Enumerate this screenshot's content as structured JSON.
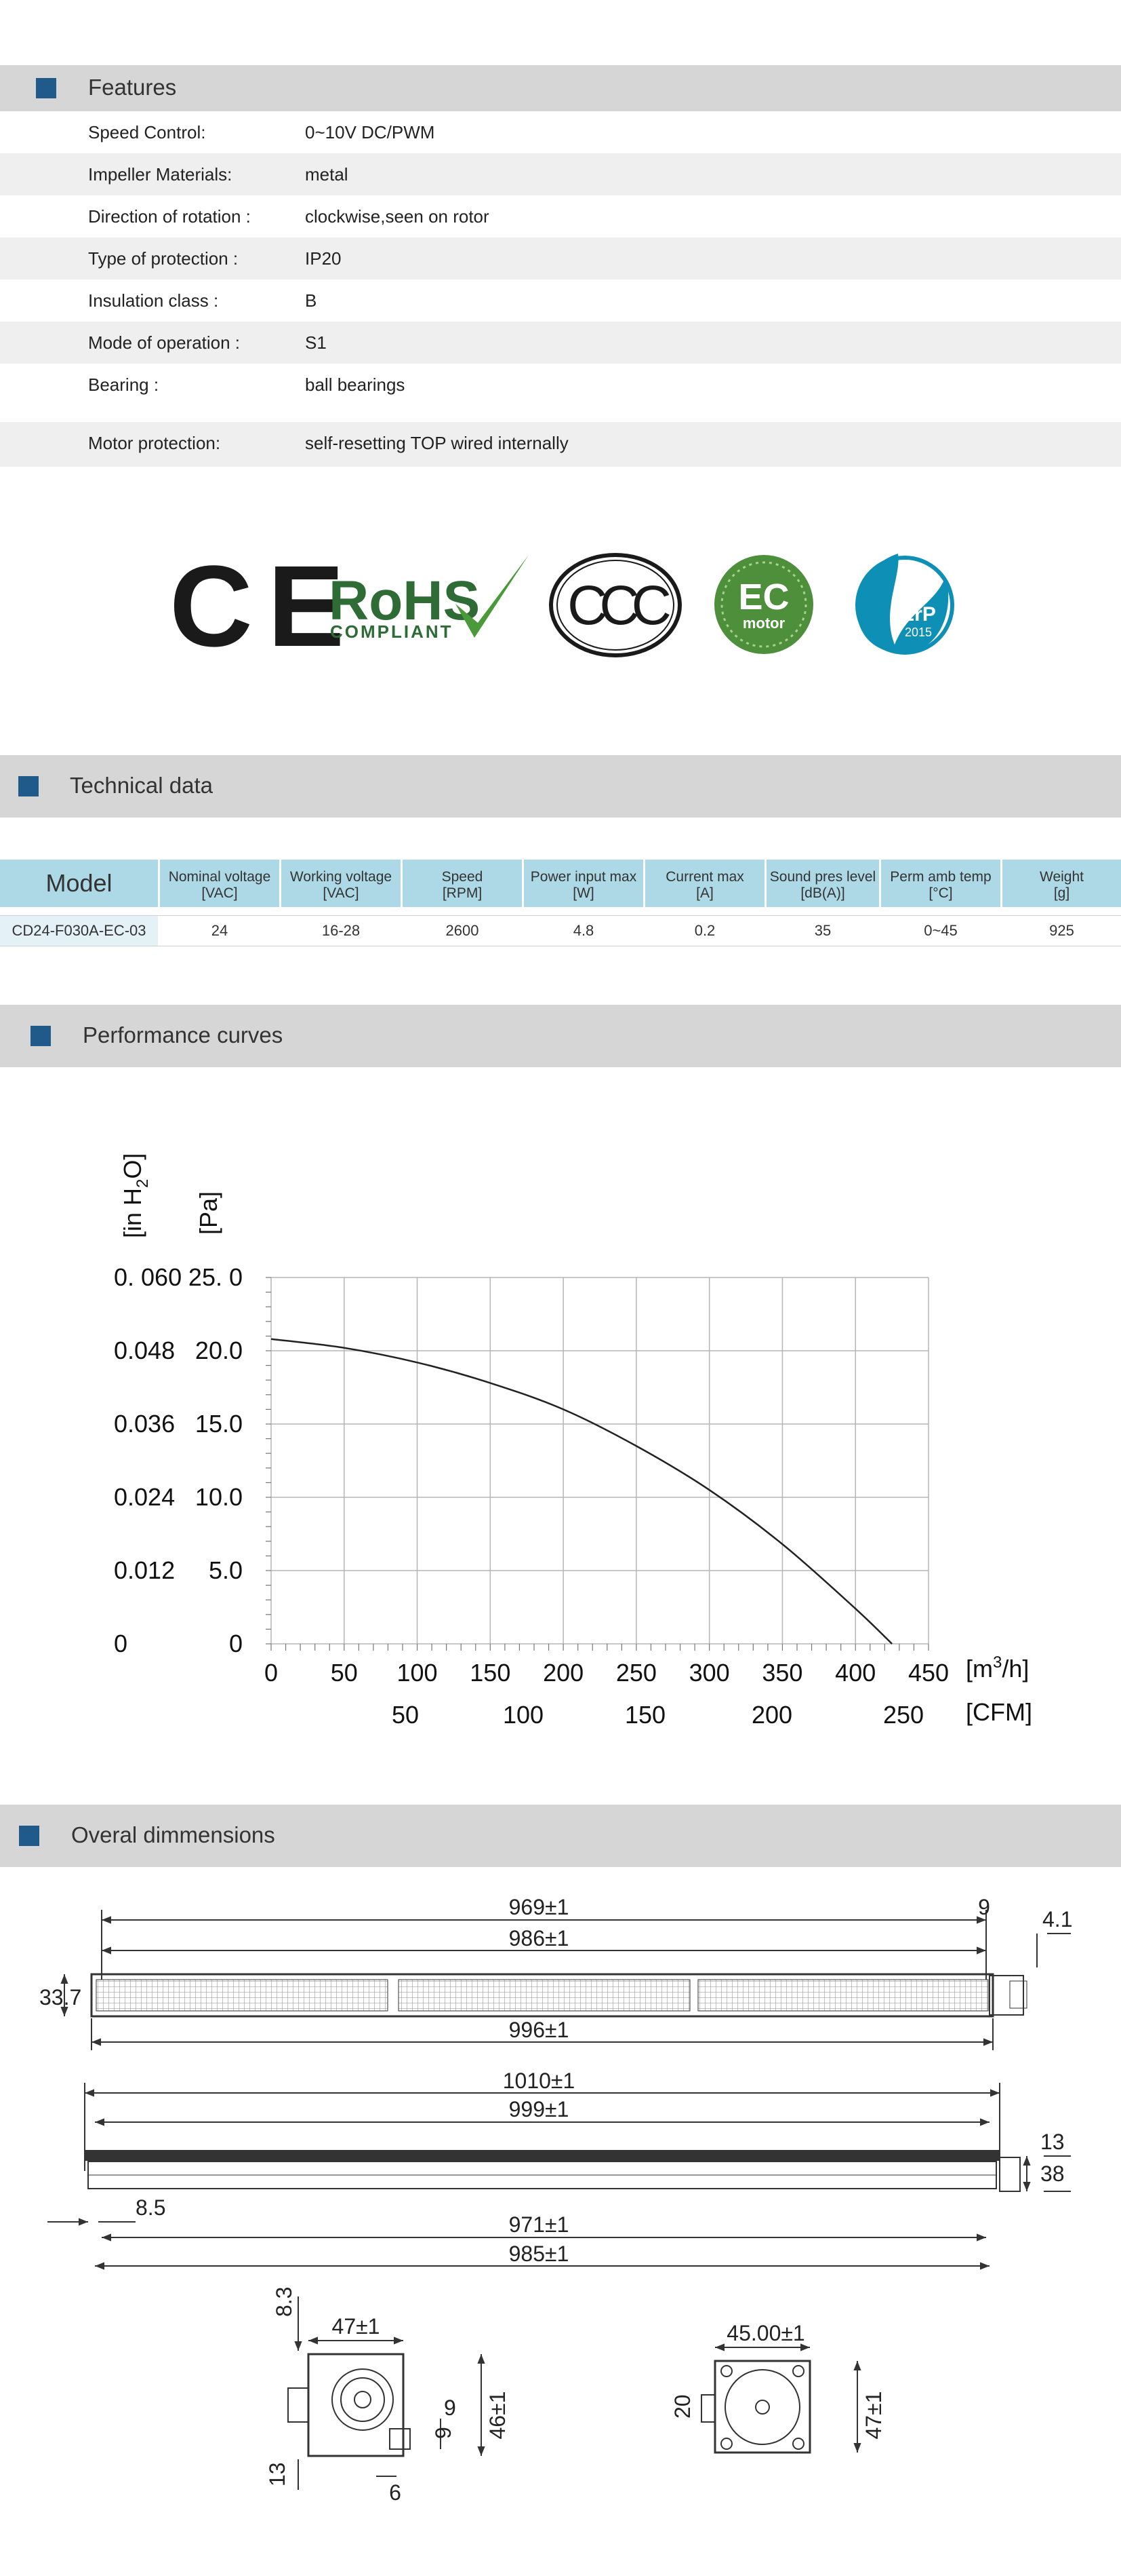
{
  "features": {
    "title": "Features",
    "rows": [
      {
        "label": "Speed Control:",
        "value": "0~10V DC/PWM"
      },
      {
        "label": "Impeller Materials:",
        "value": "metal"
      },
      {
        "label": "Direction  of  rotation  :",
        "value": "clockwise,seen on rotor"
      },
      {
        "label": "Type of protection :",
        "value": "IP20"
      },
      {
        "label": "Insulation  class :",
        "value": "B"
      },
      {
        "label": "Mode of operation :",
        "value": "S1"
      },
      {
        "label": "Bearing :",
        "value": "ball  bearings"
      },
      {
        "label": "Motor protection:",
        "value": "self-resetting TOP wired internally"
      }
    ]
  },
  "certifications": {
    "ce": "CE",
    "rohs": "RoHS",
    "rohs_sub": "COMPLIANT",
    "ccc": "CCC",
    "ec_big": "EC",
    "ec_small": "motor",
    "erp": "ErP",
    "erp_year": "2015"
  },
  "technical": {
    "title": "Technical data",
    "headers": [
      {
        "l1": "Model",
        "l2": ""
      },
      {
        "l1": "Nominal voltage",
        "l2": "[VAC]"
      },
      {
        "l1": "Working voltage",
        "l2": "[VAC]"
      },
      {
        "l1": "Speed",
        "l2": "[RPM]"
      },
      {
        "l1": "Power input max",
        "l2": "[W]"
      },
      {
        "l1": "Current max",
        "l2": "[A]"
      },
      {
        "l1": "Sound pres level",
        "l2": "[dB(A)]"
      },
      {
        "l1": "Perm amb temp",
        "l2": "[°C]"
      },
      {
        "l1": "Weight",
        "l2": "[g]"
      }
    ],
    "row": [
      "CD24-F030A-EC-03",
      "24",
      "16-28",
      "2600",
      "4.8",
      "0.2",
      "35",
      "0~45",
      "925"
    ]
  },
  "performance": {
    "title": "Performance curves"
  },
  "chart_data": {
    "type": "line",
    "y_left_label": "[in H2O]",
    "y_right_label": "[Pa]",
    "y_left_ticks": [
      "0",
      "0.012",
      "0.024",
      "0.036",
      "0.048",
      "0. 060"
    ],
    "y_right_ticks": [
      "0",
      "5.0",
      "10.0",
      "15.0",
      "20.0",
      "25. 0"
    ],
    "x_ticks": [
      "0",
      "50",
      "100",
      "150",
      "200",
      "250",
      "300",
      "350",
      "400",
      "450"
    ],
    "x_unit": "[m3/h]",
    "x2_ticks": [
      "50",
      "100",
      "150",
      "200",
      "250"
    ],
    "x2_unit": "[CFM]",
    "xlim": [
      0,
      450
    ],
    "ylim": [
      0,
      25
    ],
    "grid": true,
    "series": [
      {
        "x": [
          0,
          50,
          100,
          150,
          200,
          250,
          300,
          350,
          400,
          425
        ],
        "y": [
          20.8,
          20.2,
          19.2,
          17.8,
          16.0,
          13.5,
          10.5,
          6.8,
          2.4,
          0
        ]
      }
    ]
  },
  "dimensions": {
    "title": "Overal dimmensions",
    "top": {
      "d1": "969±1",
      "d2": "986±1",
      "d3": "9",
      "d4": "4.1",
      "d5": "33.7",
      "d6": "996±1"
    },
    "side": {
      "d1": "1010±1",
      "d2": "999±1",
      "d3": "13",
      "d4": "38",
      "d5": "8.5",
      "d6": "971±1",
      "d7": "985±1"
    },
    "end_left": {
      "d1": "8.3",
      "d2": "47±1",
      "d3": "9",
      "d4": "9",
      "d5": "46±1",
      "d6": "13",
      "d7": "6"
    },
    "end_right": {
      "d1": "45.00±1",
      "d2": "20",
      "d3": "47±1"
    }
  }
}
